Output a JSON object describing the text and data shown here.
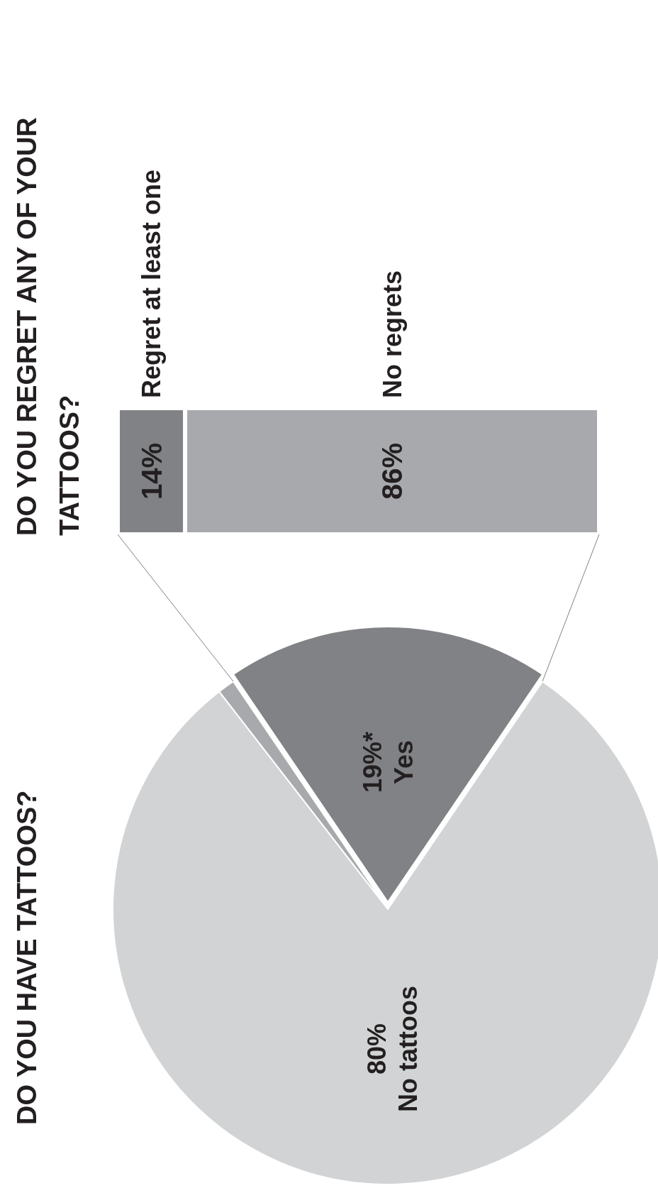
{
  "chart_data": [
    {
      "type": "pie",
      "title": "DO YOU HAVE TATTOOS?",
      "categories": [
        "Yes",
        "No tattoos",
        null
      ],
      "values": [
        19,
        80,
        1
      ],
      "colors": [
        "#808285",
        "#d1d3d4",
        "#a7a9ac"
      ],
      "value_labels": [
        "19%*",
        "80%",
        null
      ]
    },
    {
      "type": "bar",
      "title": "DO YOU REGRET ANY OF YOUR TATTOOS?",
      "categories": [
        null
      ],
      "orientation": "horizontal",
      "stacked": true,
      "xlim": [
        100,
        0
      ],
      "series": [
        {
          "name": "No regrets",
          "color": "#a7a9ac",
          "values": [
            86
          ],
          "value_labels": [
            "86%"
          ]
        },
        {
          "name": "Regret at least one",
          "color": "#808285",
          "values": [
            14
          ],
          "value_labels": [
            "14%"
          ]
        }
      ]
    }
  ]
}
